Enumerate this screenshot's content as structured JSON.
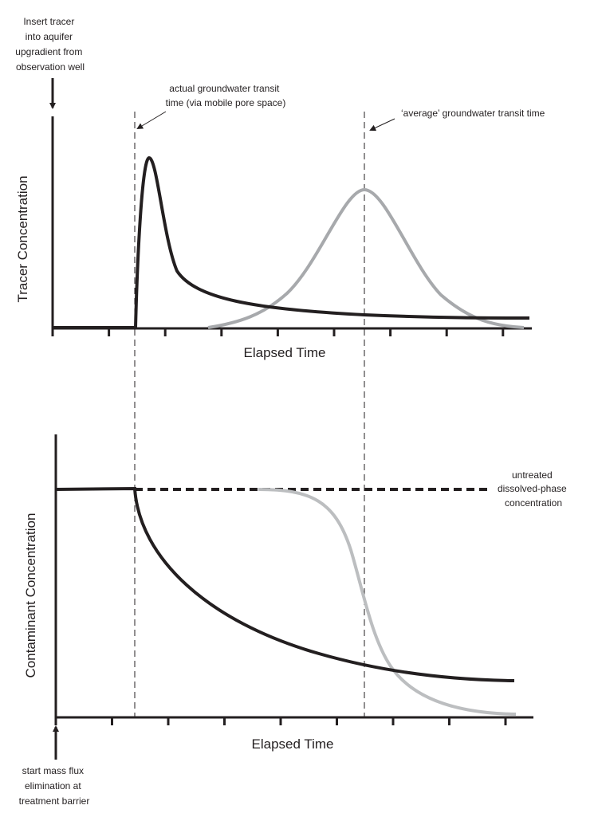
{
  "top_panel": {
    "start_note": [
      "Insert tracer",
      "into aquifer",
      "upgradient from",
      "observation well"
    ],
    "actual_transit_note": [
      "actual groundwater transit",
      "time (via mobile pore space)"
    ],
    "average_transit_note": "‘average’ groundwater transit time",
    "y_label": "Tracer Concentration",
    "x_label": "Elapsed Time"
  },
  "bottom_panel": {
    "start_note": [
      "start mass flux",
      "elimination at",
      "treatment barrier"
    ],
    "untreated_note": [
      "untreated",
      "dissolved-phase",
      "concentration"
    ],
    "y_label": "Contaminant Concentration",
    "x_label": "Elapsed Time"
  },
  "colors": {
    "primary_curve": "#231f20",
    "secondary_curve": "#a7a9ac"
  }
}
